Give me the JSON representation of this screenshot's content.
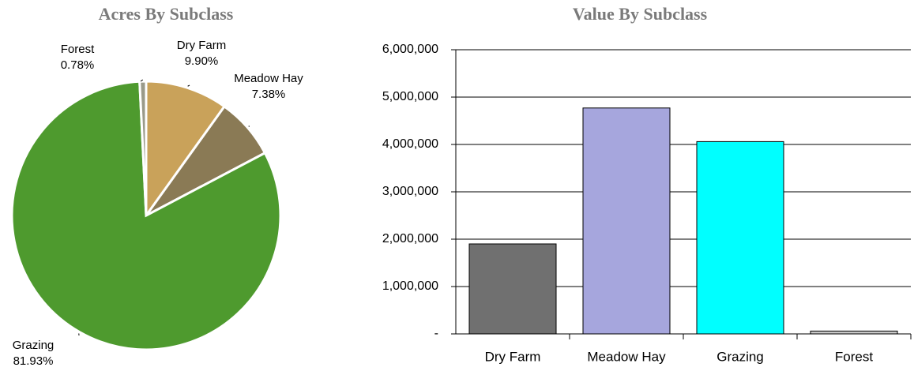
{
  "chart_data": [
    {
      "type": "pie",
      "title": "Acres By Subclass",
      "categories": [
        "Dry Farm",
        "Meadow Hay",
        "Grazing",
        "Forest"
      ],
      "values": [
        9.9,
        7.38,
        81.93,
        0.78
      ],
      "value_labels": [
        "9.90%",
        "7.38%",
        "81.93%",
        "0.78%"
      ],
      "colors": [
        "#c9a25a",
        "#8a7a55",
        "#4e9a2e",
        "#9a9a8a"
      ]
    },
    {
      "type": "bar",
      "title": "Value By Subclass",
      "categories": [
        "Dry Farm",
        "Meadow Hay",
        "Grazing",
        "Forest"
      ],
      "values": [
        1900000,
        4770000,
        4060000,
        60000
      ],
      "colors": [
        "#707070",
        "#a6a6dd",
        "#00ffff",
        "#c8c8c8"
      ],
      "ylim": [
        0,
        6000000
      ],
      "yticks": [
        {
          "value": 0,
          "label": "-"
        },
        {
          "value": 1000000,
          "label": "1,000,000"
        },
        {
          "value": 2000000,
          "label": "2,000,000"
        },
        {
          "value": 3000000,
          "label": "3,000,000"
        },
        {
          "value": 4000000,
          "label": "4,000,000"
        },
        {
          "value": 5000000,
          "label": "5,000,000"
        },
        {
          "value": 6000000,
          "label": "6,000,000"
        }
      ],
      "grid": true
    }
  ]
}
